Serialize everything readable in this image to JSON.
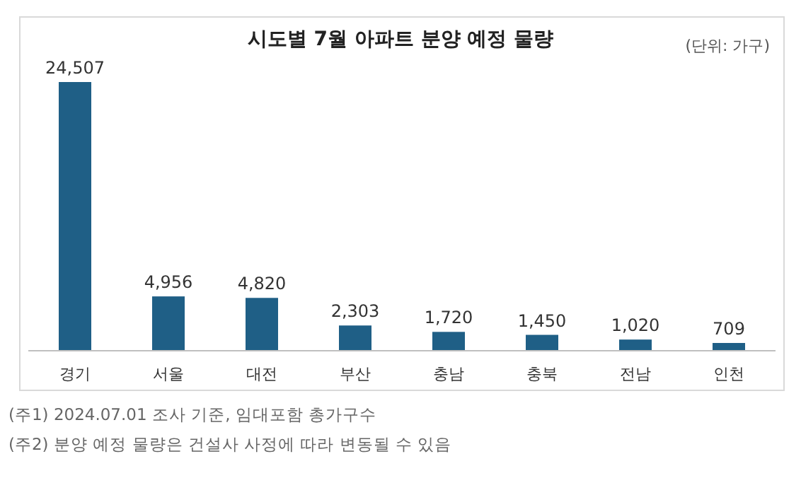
{
  "chart_data": {
    "type": "bar",
    "title": "시도별 7월 아파트 분양 예정 물량",
    "categories": [
      "경기",
      "서울",
      "대전",
      "부산",
      "충남",
      "충북",
      "전남",
      "인천"
    ],
    "values": [
      24507,
      4956,
      4820,
      2303,
      1720,
      1450,
      1020,
      709
    ],
    "value_labels": [
      "24,507",
      "4,956",
      "4,820",
      "2,303",
      "1,720",
      "1,450",
      "1,020",
      "709"
    ],
    "color": "#1f5f86",
    "annotations": [
      "(단위: 가구)",
      "(주1) 2024.07.01 조사 기준, 임대포함 총가구수",
      "(주2) 분양 예정 물량은 건설사 사정에 따라 변동될 수 있음"
    ]
  }
}
